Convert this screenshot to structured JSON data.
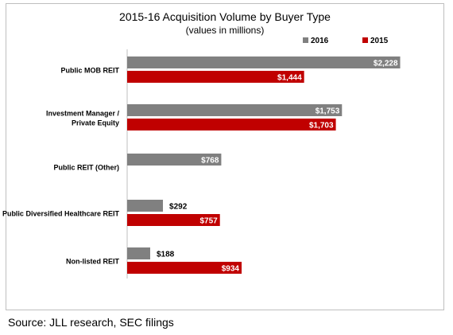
{
  "chart_data": {
    "type": "bar",
    "orientation": "horizontal",
    "title": "2015-16 Acquisition Volume by Buyer Type",
    "subtitle": "(values in millions)",
    "categories": [
      [
        "Public MOB REIT"
      ],
      [
        "Investment Manager /",
        "Private Equity"
      ],
      [
        "Public REIT (Other)"
      ],
      [
        "Public Diversified Healthcare  REIT"
      ],
      [
        "Non-listed REIT"
      ]
    ],
    "series": [
      {
        "name": "2016",
        "color": "#808080",
        "values": [
          2228,
          1753,
          768,
          292,
          188
        ],
        "labels": [
          "$2,228",
          "$1,753",
          "$768",
          "$292",
          "$188"
        ]
      },
      {
        "name": "2015",
        "color": "#c00000",
        "values": [
          1444,
          1703,
          null,
          757,
          934
        ],
        "labels": [
          "$1,444",
          "$1,703",
          "",
          "$757",
          "$934"
        ]
      }
    ],
    "xlim": [
      0,
      2270
    ],
    "grid": false,
    "legend_position": "top-right"
  },
  "source": "Source: JLL research, SEC filings"
}
